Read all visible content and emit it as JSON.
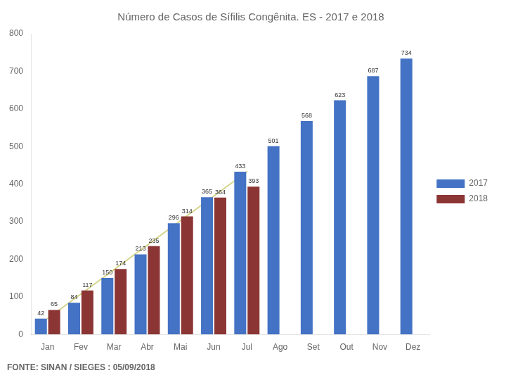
{
  "chart_data": {
    "type": "bar",
    "title": "Número de Casos de Sífilis Congênita. ES - 2017 e 2018",
    "annotations": [
      "FONTE: SINAN / SIEGES : 05/09/2018"
    ],
    "categories": [
      "Jan",
      "Fev",
      "Mar",
      "Abr",
      "Mai",
      "Jun",
      "Jul",
      "Ago",
      "Set",
      "Out",
      "Nov",
      "Dez"
    ],
    "series": [
      {
        "name": "2017",
        "color": "#4472C4",
        "values": [
          42,
          84,
          150,
          213,
          296,
          365,
          433,
          501,
          568,
          623,
          687,
          734
        ]
      },
      {
        "name": "2018",
        "color": "#8B3535",
        "values": [
          65,
          117,
          174,
          235,
          314,
          364,
          393,
          null,
          null,
          null,
          null,
          null
        ]
      },
      {
        "type": "line",
        "color": "#D4D48A",
        "values": [
          42,
          null,
          null,
          null,
          null,
          null,
          433,
          null,
          null,
          null,
          null,
          null
        ]
      }
    ],
    "ylim": [
      0,
      800
    ],
    "yticks": [
      0,
      100,
      200,
      300,
      400,
      500,
      600,
      700,
      800
    ],
    "grid": false,
    "legend": "right",
    "data_labels": true
  }
}
